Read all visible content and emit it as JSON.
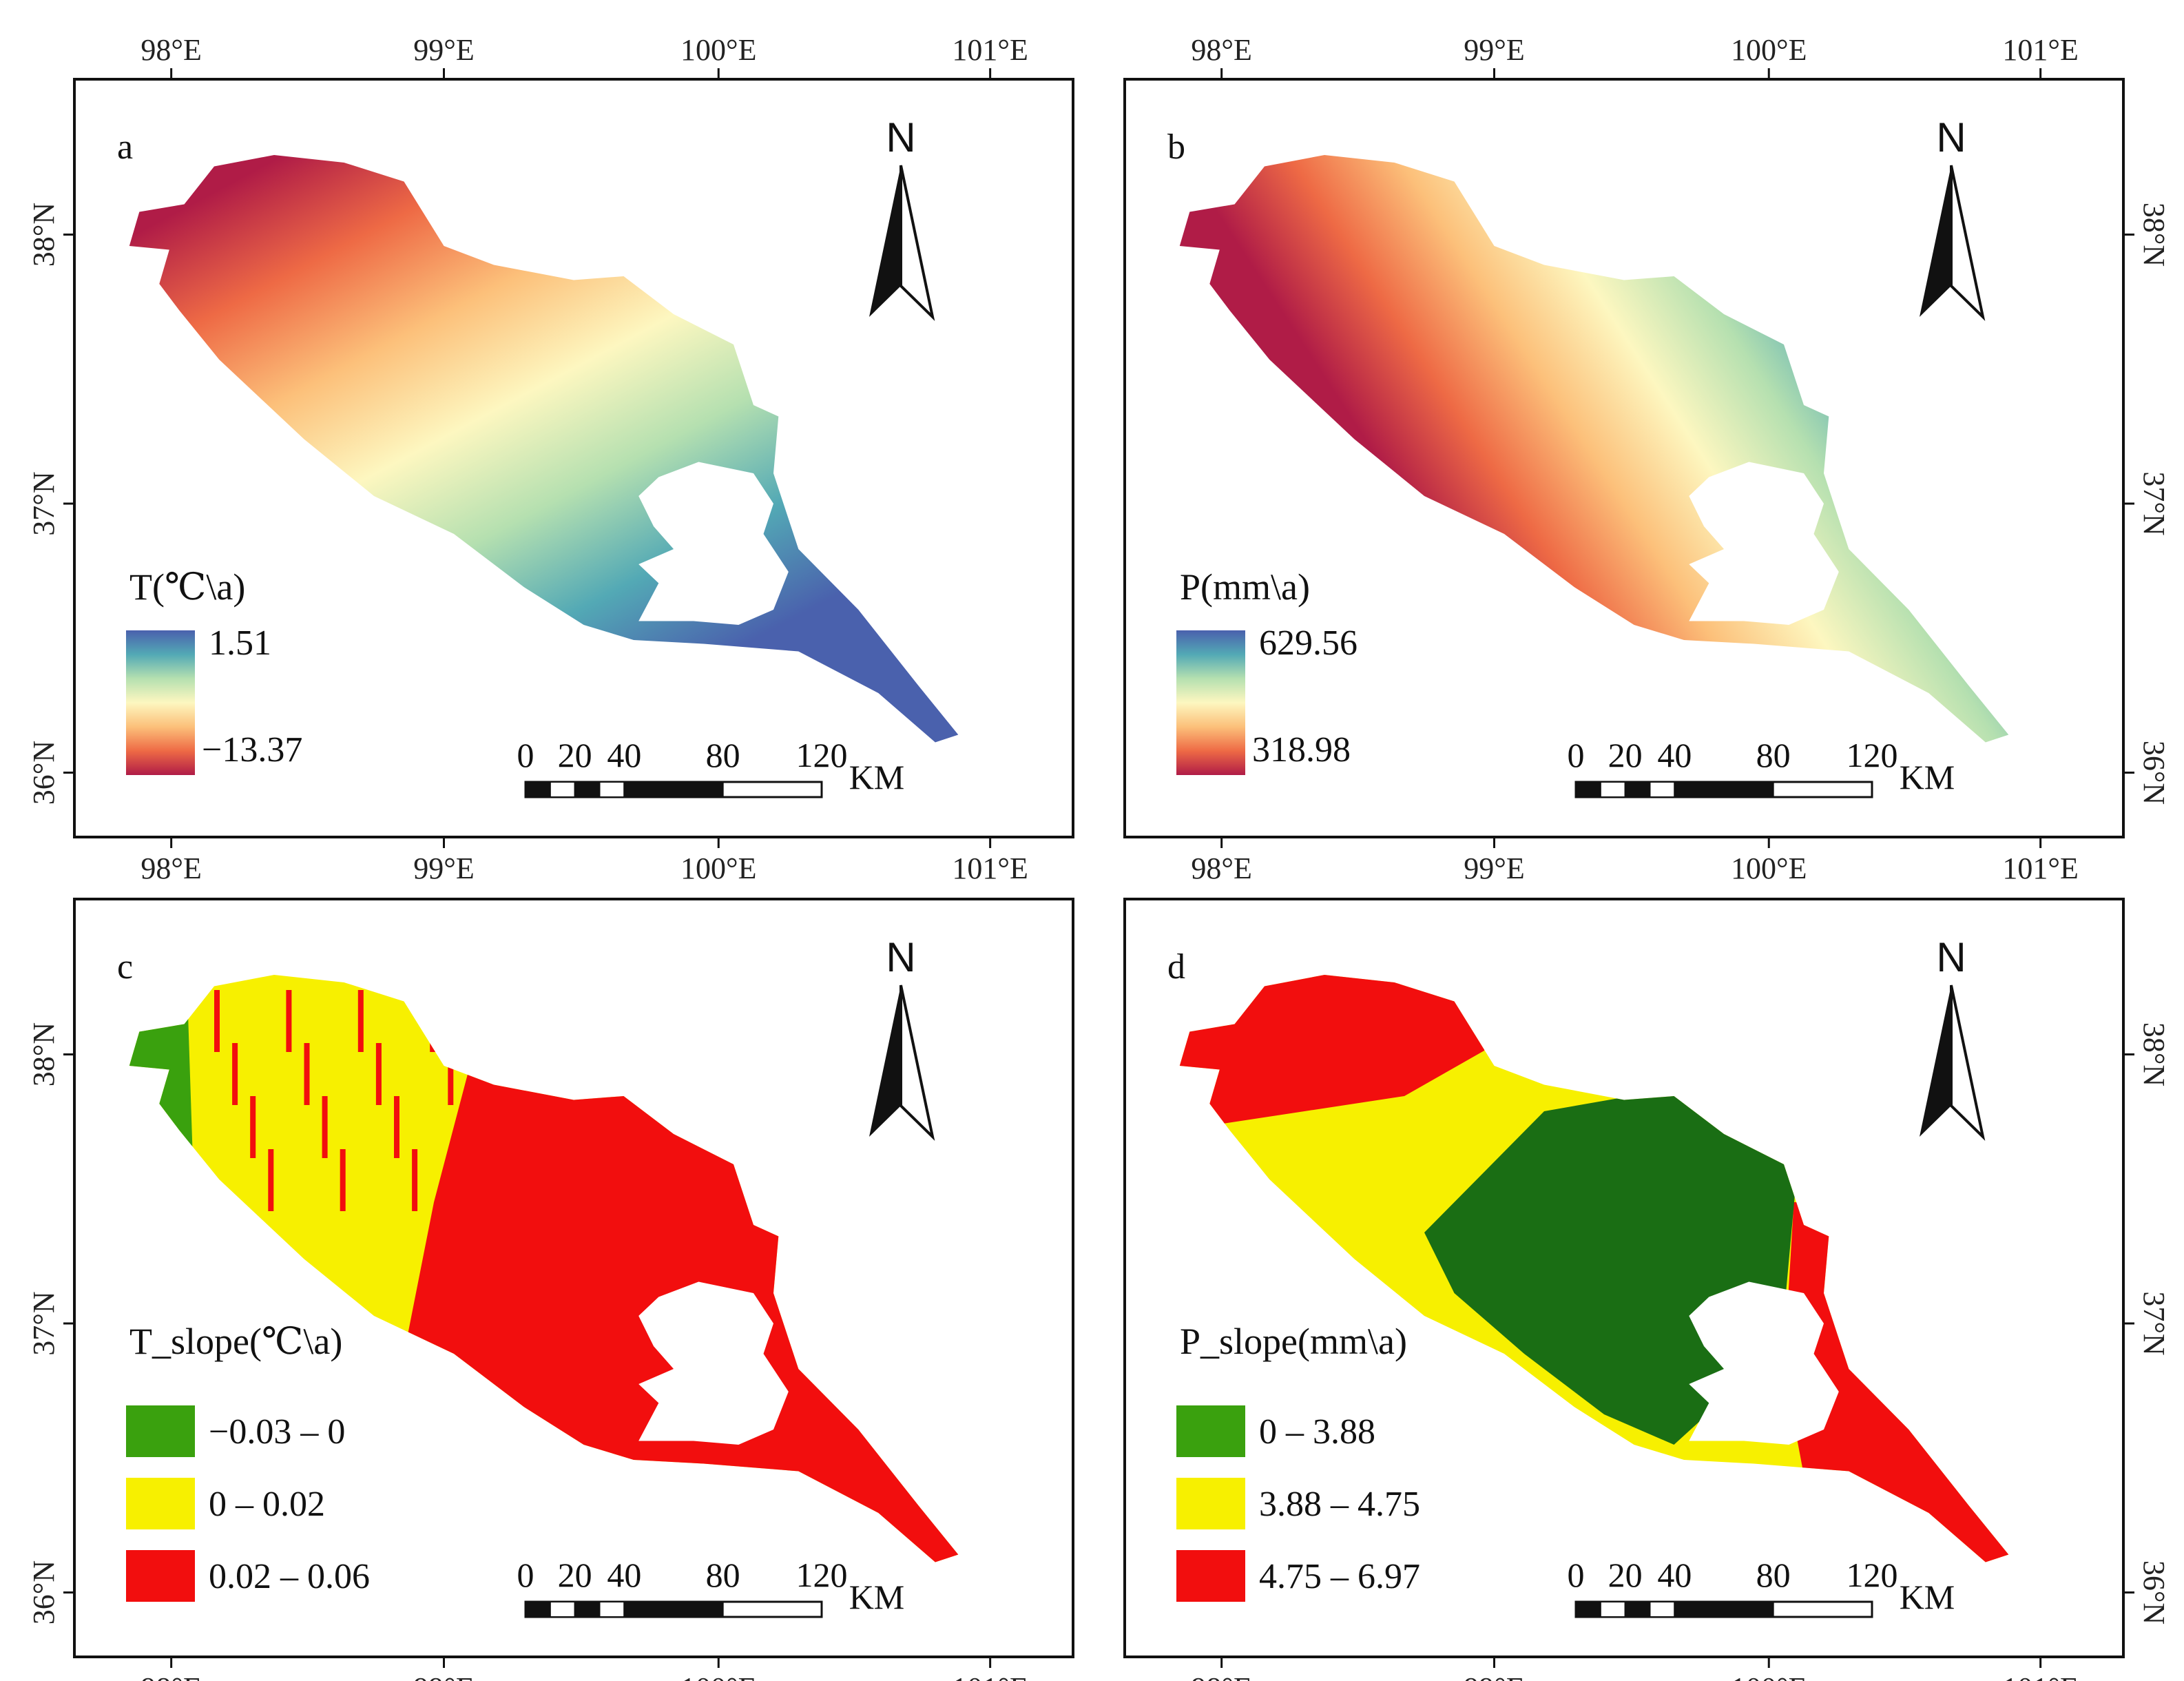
{
  "figure": {
    "lon_ticks": [
      "98°E",
      "99°E",
      "100°E",
      "101°E"
    ],
    "lat_ticks": [
      "38°N",
      "37°N",
      "36°N"
    ],
    "north_label": "N",
    "scale_labels": [
      "0",
      "20",
      "40",
      "80",
      "120"
    ],
    "scale_unit": "KM"
  },
  "panels": [
    {
      "id": "a",
      "tag": "a",
      "legend_type": "gradient",
      "legend_title": "T(℃\\a)",
      "legend_max": "1.51",
      "legend_min": "−13.37",
      "ramp": [
        "#4a61ad",
        "#53a9b5",
        "#b5e0b0",
        "#fdf7c0",
        "#fcc07a",
        "#ee6a45",
        "#b01c47"
      ]
    },
    {
      "id": "b",
      "tag": "b",
      "legend_type": "gradient",
      "legend_title": "P(mm\\a)",
      "legend_max": "629.56",
      "legend_min": "318.98",
      "ramp": [
        "#4a61ad",
        "#53a9b5",
        "#b5e0b0",
        "#fdf7c0",
        "#fcc07a",
        "#ee6a45",
        "#b01c47"
      ]
    },
    {
      "id": "c",
      "tag": "c",
      "legend_type": "classes",
      "legend_title": "T_slope(℃\\a)",
      "classes": [
        {
          "label": "−0.03 – 0",
          "color": "#3aa10e"
        },
        {
          "label": "0 – 0.02",
          "color": "#f7f000"
        },
        {
          "label": "0.02 – 0.06",
          "color": "#f20e0e"
        }
      ]
    },
    {
      "id": "d",
      "tag": "d",
      "legend_type": "classes",
      "legend_title": "P_slope(mm\\a)",
      "classes": [
        {
          "label": "0 – 3.88",
          "color": "#3aa10e"
        },
        {
          "label": "3.88 – 4.75",
          "color": "#f7f000"
        },
        {
          "label": "4.75 – 6.97",
          "color": "#f20e0e"
        }
      ]
    }
  ]
}
